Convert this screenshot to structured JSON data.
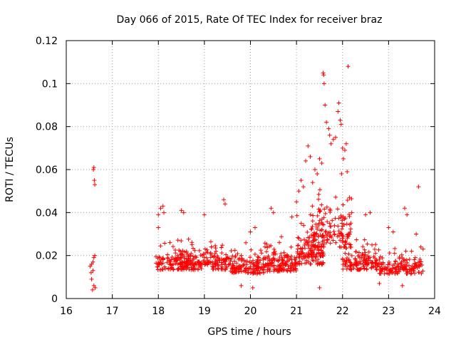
{
  "chart_data": {
    "type": "scatter",
    "title": "Day 066 of 2015, Rate Of TEC Index for receiver braz",
    "xlabel": "GPS time / hours",
    "ylabel": "ROTI / TECUs",
    "xlim": [
      16,
      24
    ],
    "ylim": [
      0,
      0.12
    ],
    "xticks": [
      16,
      17,
      18,
      19,
      20,
      21,
      22,
      23,
      24
    ],
    "xtick_labels": [
      "16",
      "17",
      "18",
      "19",
      "20",
      "21",
      "22",
      "23",
      "24"
    ],
    "yticks": [
      0,
      0.02,
      0.04,
      0.06,
      0.08,
      0.1,
      0.12
    ],
    "ytick_labels": [
      "0",
      "0.02",
      "0.04",
      "0.06",
      "0.08",
      "0.1",
      "0.12"
    ],
    "grid": true,
    "marker": "+",
    "color": "#ff0000",
    "series": [
      {
        "name": "ROTI",
        "points": [
          [
            16.52,
            0.015
          ],
          [
            16.54,
            0.012
          ],
          [
            16.55,
            0.009
          ],
          [
            16.57,
            0.004
          ],
          [
            16.58,
            0.017
          ],
          [
            16.6,
            0.061
          ],
          [
            16.59,
            0.06
          ],
          [
            16.61,
            0.055
          ],
          [
            16.62,
            0.053
          ],
          [
            16.6,
            0.019
          ],
          [
            16.62,
            0.02
          ],
          [
            16.6,
            0.006
          ],
          [
            16.63,
            0.005
          ],
          [
            16.55,
            0.016
          ],
          [
            16.58,
            0.013
          ],
          [
            18.0,
            0.039
          ],
          [
            18.05,
            0.042
          ],
          [
            18.1,
            0.043
          ],
          [
            18.12,
            0.04
          ],
          [
            18.0,
            0.033
          ],
          [
            18.5,
            0.041
          ],
          [
            18.55,
            0.04
          ],
          [
            19.0,
            0.039
          ],
          [
            19.42,
            0.046
          ],
          [
            19.45,
            0.044
          ],
          [
            20.0,
            0.031
          ],
          [
            20.1,
            0.033
          ],
          [
            20.45,
            0.042
          ],
          [
            20.5,
            0.04
          ],
          [
            20.9,
            0.038
          ],
          [
            21.0,
            0.045
          ],
          [
            21.05,
            0.05
          ],
          [
            21.1,
            0.055
          ],
          [
            21.15,
            0.052
          ],
          [
            21.2,
            0.064
          ],
          [
            21.25,
            0.071
          ],
          [
            21.3,
            0.066
          ],
          [
            21.35,
            0.054
          ],
          [
            21.4,
            0.06
          ],
          [
            21.45,
            0.058
          ],
          [
            21.5,
            0.065
          ],
          [
            21.55,
            0.063
          ],
          [
            21.58,
            0.105
          ],
          [
            21.59,
            0.104
          ],
          [
            21.6,
            0.1
          ],
          [
            21.62,
            0.09
          ],
          [
            21.65,
            0.082
          ],
          [
            21.7,
            0.079
          ],
          [
            21.72,
            0.076
          ],
          [
            21.75,
            0.072
          ],
          [
            21.8,
            0.074
          ],
          [
            21.85,
            0.075
          ],
          [
            21.9,
            0.087
          ],
          [
            21.92,
            0.091
          ],
          [
            21.95,
            0.083
          ],
          [
            21.97,
            0.081
          ],
          [
            22.0,
            0.07
          ],
          [
            22.02,
            0.065
          ],
          [
            22.05,
            0.069
          ],
          [
            22.08,
            0.072
          ],
          [
            22.1,
            0.059
          ],
          [
            22.12,
            0.108
          ],
          [
            22.15,
            0.047
          ],
          [
            22.2,
            0.04
          ],
          [
            22.5,
            0.039
          ],
          [
            22.6,
            0.04
          ],
          [
            23.0,
            0.033
          ],
          [
            23.1,
            0.031
          ],
          [
            23.35,
            0.042
          ],
          [
            23.4,
            0.039
          ],
          [
            23.65,
            0.052
          ],
          [
            23.6,
            0.03
          ],
          [
            23.7,
            0.024
          ],
          [
            23.75,
            0.023
          ],
          [
            23.5,
            0.022
          ],
          [
            21.5,
            0.005
          ],
          [
            20.05,
            0.005
          ],
          [
            19.8,
            0.006
          ],
          [
            22.8,
            0.007
          ],
          [
            23.3,
            0.006
          ]
        ],
        "clusters": [
          {
            "x": [
              17.95,
              18.7
            ],
            "y": [
              0.008,
              0.03
            ]
          },
          {
            "x": [
              18.7,
              19.5
            ],
            "y": [
              0.008,
              0.03
            ]
          },
          {
            "x": [
              19.5,
              20.3
            ],
            "y": [
              0.006,
              0.028
            ]
          },
          {
            "x": [
              20.3,
              21.0
            ],
            "y": [
              0.007,
              0.03
            ]
          },
          {
            "x": [
              21.0,
              21.6
            ],
            "y": [
              0.008,
              0.04
            ]
          },
          {
            "x": [
              21.3,
              22.2
            ],
            "y": [
              0.012,
              0.06
            ]
          },
          {
            "x": [
              22.0,
              22.8
            ],
            "y": [
              0.008,
              0.03
            ]
          },
          {
            "x": [
              22.8,
              23.75
            ],
            "y": [
              0.007,
              0.025
            ]
          }
        ],
        "cluster_count": 140
      }
    ]
  }
}
